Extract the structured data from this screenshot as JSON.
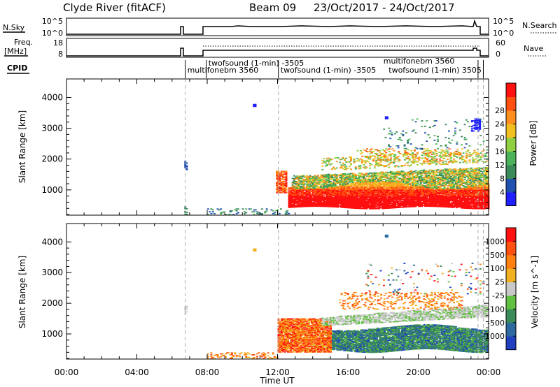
{
  "header": {
    "station": "Clyde River (fitACF)",
    "beam": "Beam 09",
    "dates": "23/Oct/2017 - 24/Oct/2017"
  },
  "nsky_panel": {
    "left_label": "N.Sky",
    "left_ticks": [
      "10^5",
      "10^0"
    ],
    "right_label": "N.Search",
    "right_ticks": [
      "10^5",
      "10^0"
    ]
  },
  "freq_panel": {
    "left_label_1": "Freq.",
    "left_label_2": "[MHz]",
    "left_ticks": [
      "18",
      "8"
    ],
    "right_label": "Nave",
    "right_ticks": [
      "60",
      "0"
    ]
  },
  "cpid": {
    "label": "CPID",
    "programs": [
      {
        "text": "multifonebm 3560",
        "t_start": 6.75
      },
      {
        "text": "twofsound (1-min) -3505",
        "t_start": 7.95
      },
      {
        "text": "twofsound (1-min) -3505",
        "t_start": 12.05
      },
      {
        "text": "multifonebm 3560",
        "t_start": 17.9
      },
      {
        "text": "twofsound (1-min) 3505",
        "t_start": 18.2
      }
    ],
    "lines_at": [
      6.75,
      7.95,
      12.05,
      23.4,
      23.7
    ]
  },
  "chart_data": [
    {
      "type": "heatmap",
      "quantity": "power",
      "ylabel": "Slant Range [km]",
      "yticks": [
        "1000",
        "2000",
        "3000",
        "4000"
      ],
      "ylim": [
        180,
        4600
      ],
      "xlim": [
        0,
        24
      ],
      "colorbar": {
        "label": "Power [dB]",
        "ticks": [
          "4",
          "8",
          "12",
          "16",
          "20",
          "24",
          "28"
        ],
        "colors": [
          "#2020ff",
          "#2050b0",
          "#3a8a5a",
          "#4db35a",
          "#90d040",
          "#f0c020",
          "#ff9020",
          "#ff5010",
          "#ff1010"
        ]
      }
    },
    {
      "type": "heatmap",
      "quantity": "velocity",
      "ylabel": "Slant Range [km]",
      "yticks": [
        "1000",
        "2000",
        "3000",
        "4000"
      ],
      "ylim": [
        180,
        4600
      ],
      "xlim": [
        0,
        24
      ],
      "xticks": [
        "00:00",
        "04:00",
        "08:00",
        "12:00",
        "16:00",
        "20:00",
        "00:00"
      ],
      "xlabel": "Time UT",
      "colorbar": {
        "label": "Velocity [m s^-1]",
        "ticks": [
          "1000",
          "500",
          "100",
          "25",
          "-25",
          "-100",
          "-500",
          "-1000"
        ],
        "colors": [
          "#2040c0",
          "#2c6aa0",
          "#3a8a5a",
          "#60c040",
          "#c8c8c8",
          "#f0b020",
          "#ff8010",
          "#ff5010",
          "#ff1010"
        ]
      }
    }
  ]
}
